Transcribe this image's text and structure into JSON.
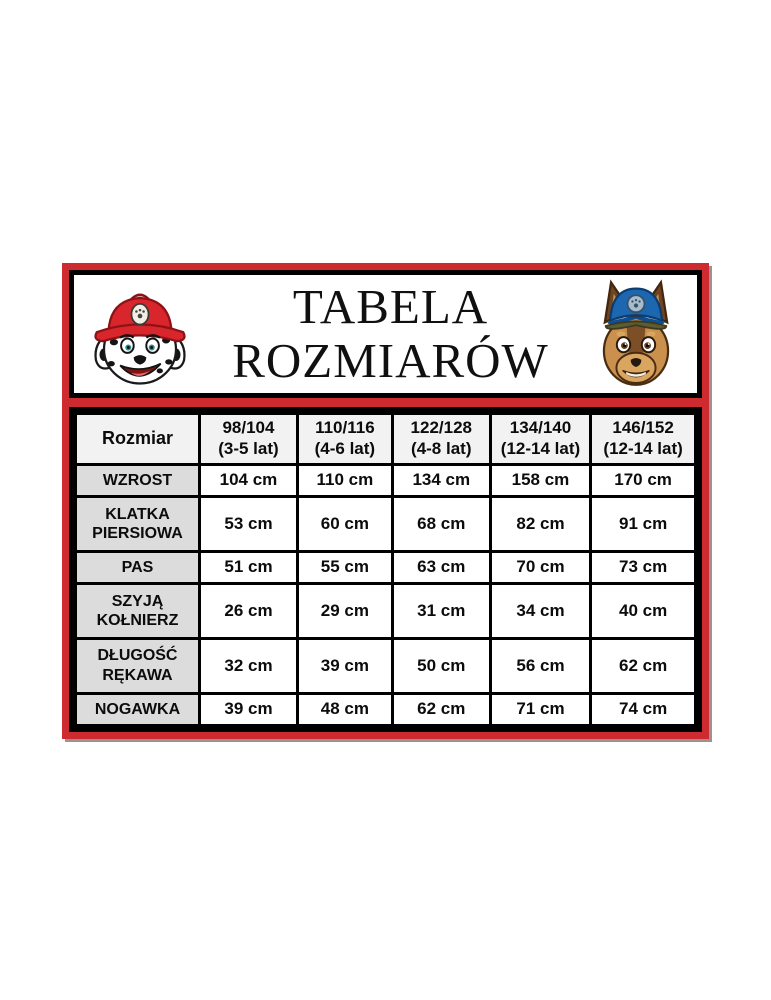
{
  "title": {
    "line1": "TABELA",
    "line2": "ROZMIARÓW"
  },
  "images": {
    "left": "marshall-paw-patrol-icon",
    "right": "chase-paw-patrol-icon"
  },
  "colors": {
    "frame_red": "#ce2b30",
    "border_black": "#000000",
    "header_cell_bg": "#f2f2f2",
    "label_cell_bg": "#dcdcdc",
    "data_cell_bg": "#ffffff"
  },
  "table": {
    "corner_label": "Rozmiar",
    "columns": [
      {
        "size": "98/104",
        "age": "(3-5 lat)"
      },
      {
        "size": "110/116",
        "age": "(4-6 lat)"
      },
      {
        "size": "122/128",
        "age": "(4-8 lat)"
      },
      {
        "size": "134/140",
        "age": "(12-14 lat)"
      },
      {
        "size": "146/152",
        "age": "(12-14 lat)"
      }
    ],
    "rows": [
      {
        "label_lines": [
          "WZROST"
        ],
        "values": [
          "104 cm",
          "110 cm",
          "134 cm",
          "158 cm",
          "170 cm"
        ]
      },
      {
        "label_lines": [
          "KLATKA",
          "PIERSIOWA"
        ],
        "values": [
          "53 cm",
          "60 cm",
          "68 cm",
          "82 cm",
          "91 cm"
        ]
      },
      {
        "label_lines": [
          "PAS"
        ],
        "values": [
          "51 cm",
          "55 cm",
          "63 cm",
          "70 cm",
          "73 cm"
        ]
      },
      {
        "label_lines": [
          "SZYJĄ",
          "KOŁNIERZ"
        ],
        "values": [
          "26 cm",
          "29 cm",
          "31 cm",
          "34 cm",
          "40 cm"
        ]
      },
      {
        "label_lines": [
          "DŁUGOŚĆ",
          "RĘKAWA"
        ],
        "values": [
          "32 cm",
          "39 cm",
          "50 cm",
          "56 cm",
          "62 cm"
        ]
      },
      {
        "label_lines": [
          "NOGAWKA"
        ],
        "values": [
          "39 cm",
          "48 cm",
          "62 cm",
          "71 cm",
          "74 cm"
        ]
      }
    ]
  }
}
